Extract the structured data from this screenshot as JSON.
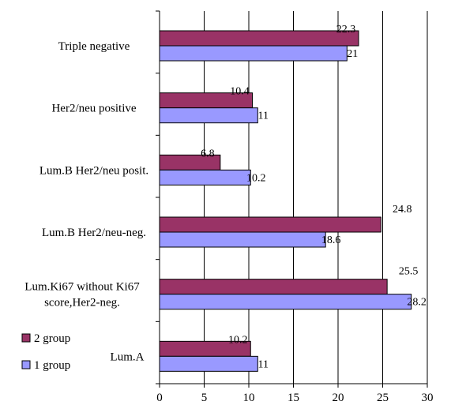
{
  "chart_data": {
    "type": "bar",
    "orientation": "horizontal",
    "categories": [
      "Triple negative",
      "Her2/neu positive",
      "Lum.B Her2/neu posit.",
      "Lum.B Her2/neu-neg.",
      "Lum.Ki67 without Ki67 score,Her2-neg.",
      "Lum.A"
    ],
    "category_lines": [
      [
        "Triple negative"
      ],
      [
        "Her2/neu positive"
      ],
      [
        "Lum.B Her2/neu posit."
      ],
      [
        "Lum.B Her2/neu-neg."
      ],
      [
        "Lum.Ki67 without Ki67",
        "score,Her2-neg."
      ],
      [
        "Lum.A"
      ]
    ],
    "series": [
      {
        "name": "2 group",
        "color": "#993366",
        "values": [
          22.3,
          10.4,
          6.8,
          24.8,
          25.5,
          10.2
        ],
        "labels": [
          "22.3",
          "10.4",
          "6.8",
          "24.8",
          "25.5",
          "10.2"
        ]
      },
      {
        "name": "1 group",
        "color": "#9999FF",
        "values": [
          21,
          11,
          10.2,
          18.6,
          28.2,
          11
        ],
        "labels": [
          "21",
          "11",
          "10.2",
          "18.6",
          "28.2",
          "11"
        ]
      }
    ],
    "xlim": [
      0,
      30
    ],
    "xticks": [
      0,
      5,
      10,
      15,
      20,
      25,
      30
    ],
    "xtick_labels": [
      "0",
      "5",
      "10",
      "15",
      "20",
      "25",
      "30"
    ],
    "grid": "vertical",
    "legend": "bottom-left",
    "title": "",
    "xlabel": "",
    "ylabel": ""
  }
}
